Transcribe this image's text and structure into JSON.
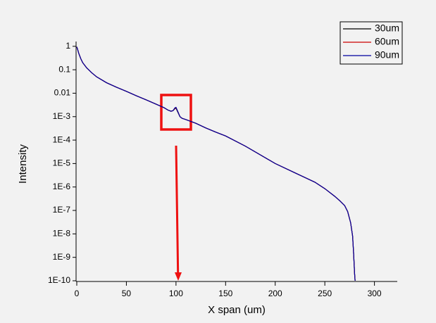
{
  "chart_data": {
    "type": "line",
    "x_label": "X span (um)",
    "y_label": "Intensity",
    "x": [
      0,
      1,
      2,
      4,
      6,
      10,
      15,
      20,
      30,
      40,
      50,
      60,
      70,
      80,
      88,
      92,
      95,
      97,
      99,
      100,
      102,
      104,
      106,
      110,
      120,
      130,
      140,
      150,
      170,
      200,
      220,
      240,
      250,
      260,
      265,
      270,
      273,
      276,
      278,
      279,
      280,
      280.5
    ],
    "series": [
      {
        "name": "30um",
        "color": "#000000",
        "values": [
          0.95,
          0.7,
          0.5,
          0.3,
          0.2,
          0.12,
          0.075,
          0.05,
          0.028,
          0.018,
          0.012,
          0.0078,
          0.0052,
          0.0034,
          0.0024,
          0.0019,
          0.0017,
          0.0018,
          0.0022,
          0.0023,
          0.0015,
          0.001,
          0.00085,
          0.00075,
          0.00052,
          0.00033,
          0.00022,
          0.00015,
          5.5e-05,
          1e-05,
          4e-06,
          1.6e-06,
          8.5e-07,
          4e-07,
          2.6e-07,
          1.6e-07,
          9e-08,
          3e-08,
          8e-09,
          1.5e-09,
          2e-10,
          1e-10
        ]
      },
      {
        "name": "60um",
        "color": "#cc0000",
        "values": [
          0.95,
          0.7,
          0.5,
          0.3,
          0.2,
          0.12,
          0.075,
          0.05,
          0.028,
          0.018,
          0.012,
          0.0078,
          0.0052,
          0.0034,
          0.0024,
          0.0019,
          0.0017,
          0.0018,
          0.0023,
          0.0024,
          0.0016,
          0.001,
          0.00085,
          0.00075,
          0.00052,
          0.00033,
          0.00022,
          0.00015,
          5.5e-05,
          1e-05,
          4e-06,
          1.6e-06,
          8.5e-07,
          4e-07,
          2.6e-07,
          1.6e-07,
          9e-08,
          3e-08,
          8e-09,
          1.5e-09,
          2e-10,
          1e-10
        ]
      },
      {
        "name": "90um",
        "color": "#0000a0",
        "values": [
          0.95,
          0.7,
          0.5,
          0.3,
          0.2,
          0.12,
          0.075,
          0.05,
          0.028,
          0.018,
          0.012,
          0.0078,
          0.0052,
          0.0034,
          0.0024,
          0.0019,
          0.0017,
          0.0018,
          0.0024,
          0.0025,
          0.0016,
          0.001,
          0.00085,
          0.00075,
          0.00052,
          0.00033,
          0.00022,
          0.00015,
          5.5e-05,
          1e-05,
          4e-06,
          1.6e-06,
          8.5e-07,
          4e-07,
          2.6e-07,
          1.6e-07,
          9e-08,
          3e-08,
          8e-09,
          1.5e-09,
          2e-10,
          1e-10
        ]
      }
    ],
    "xlim": [
      0,
      323
    ],
    "xticks": [
      0,
      50,
      100,
      150,
      200,
      250,
      300
    ],
    "ylim": [
      1e-10,
      1.6
    ],
    "y_scale": "log",
    "yticks": [
      1,
      0.1,
      0.01,
      {
        "value": 0.001,
        "label": "1E-3"
      },
      {
        "value": 0.0001,
        "label": "1E-4"
      },
      {
        "value": 1e-05,
        "label": "1E-5"
      },
      {
        "value": 1e-06,
        "label": "1E-6"
      },
      {
        "value": 1e-07,
        "label": "1E-7"
      },
      {
        "value": 1e-08,
        "label": "1E-8"
      },
      {
        "value": 1e-09,
        "label": "1E-9"
      },
      {
        "value": 1e-10,
        "label": "1E-10"
      }
    ],
    "grid": false,
    "legend": "upper right"
  }
}
